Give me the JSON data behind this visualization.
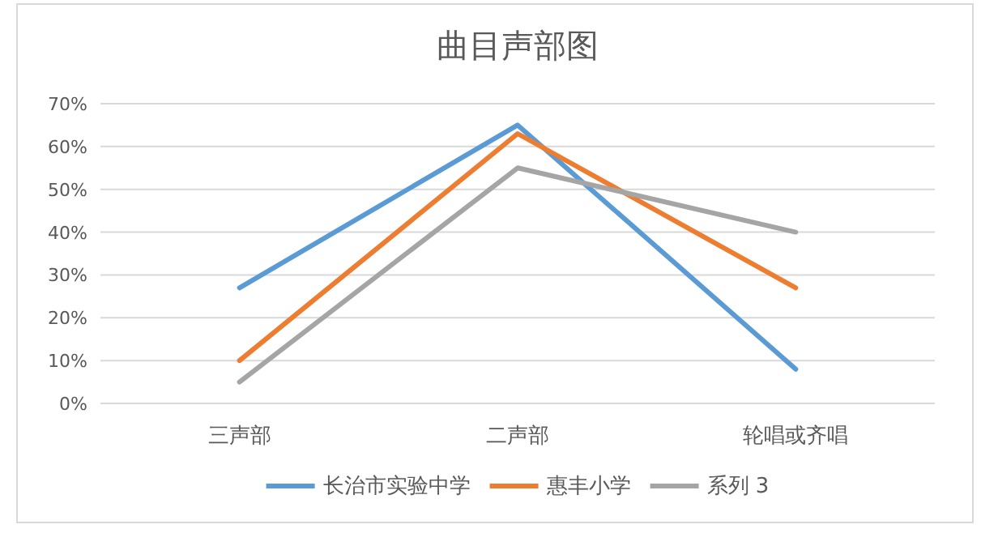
{
  "chart_data": {
    "type": "line",
    "title": "曲目声部图",
    "categories": [
      "三声部",
      "二声部",
      "轮唱或齐唱"
    ],
    "series": [
      {
        "name": "长治市实验中学",
        "color": "#5b9bd5",
        "values": [
          27,
          65,
          8
        ]
      },
      {
        "name": "惠丰小学",
        "color": "#ed7d31",
        "values": [
          10,
          63,
          27
        ]
      },
      {
        "name": "系列 3",
        "color": "#a5a5a5",
        "values": [
          5,
          55,
          40
        ]
      }
    ],
    "ylim": [
      0,
      70
    ],
    "yticks": [
      {
        "value": 0,
        "label": "0%"
      },
      {
        "value": 10,
        "label": "10%"
      },
      {
        "value": 20,
        "label": "20%"
      },
      {
        "value": 30,
        "label": "30%"
      },
      {
        "value": 40,
        "label": "40%"
      },
      {
        "value": 50,
        "label": "50%"
      },
      {
        "value": 60,
        "label": "60%"
      },
      {
        "value": 70,
        "label": "70%"
      }
    ],
    "grid": "y",
    "legend": "bottom",
    "marker": "none",
    "line_style": "solid"
  }
}
